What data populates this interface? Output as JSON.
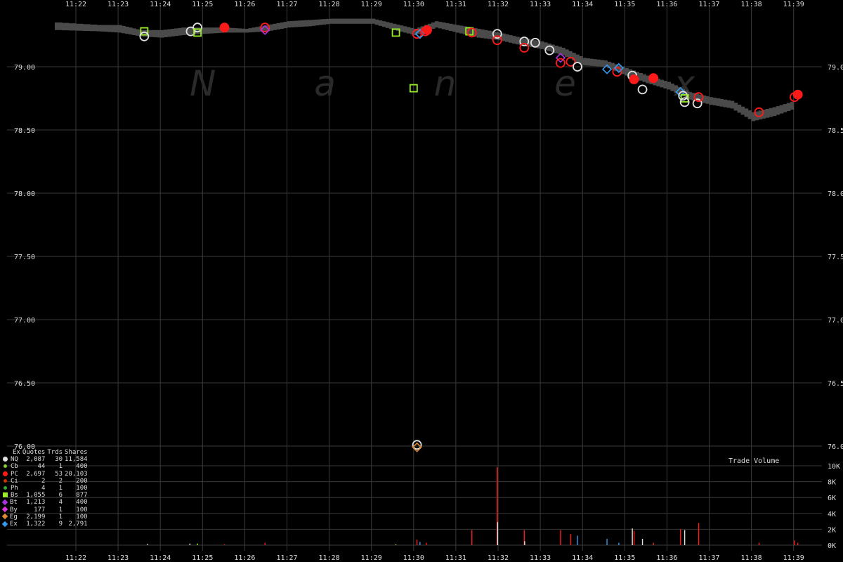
{
  "chart_data": {
    "type": "scatter",
    "watermark": "N  a  n  e  x",
    "x_ticks": [
      "11:22",
      "11:23",
      "11:24",
      "11:25",
      "11:26",
      "11:27",
      "11:28",
      "11:29",
      "11:30",
      "11:31",
      "11:32",
      "11:33",
      "11:34",
      "11:35",
      "11:36",
      "11:37",
      "11:38",
      "11:39"
    ],
    "y_ticks": [
      "79.00",
      "78.50",
      "78.00",
      "77.50",
      "77.00",
      "76.50",
      "76.00"
    ],
    "ylim": [
      75.85,
      79.5
    ],
    "nbbo_band": [
      {
        "t": "11:21.5",
        "lo": 79.29,
        "hi": 79.35
      },
      {
        "t": "11:22.5",
        "lo": 79.28,
        "hi": 79.33
      },
      {
        "t": "11:23.0",
        "lo": 79.27,
        "hi": 79.33
      },
      {
        "t": "11:23.5",
        "lo": 79.24,
        "hi": 79.29
      },
      {
        "t": "11:24.0",
        "lo": 79.23,
        "hi": 79.29
      },
      {
        "t": "11:24.5",
        "lo": 79.25,
        "hi": 79.31
      },
      {
        "t": "11:25.0",
        "lo": 79.26,
        "hi": 79.31
      },
      {
        "t": "11:25.5",
        "lo": 79.27,
        "hi": 79.31
      },
      {
        "t": "11:26.0",
        "lo": 79.27,
        "hi": 79.3
      },
      {
        "t": "11:26.5",
        "lo": 79.28,
        "hi": 79.33
      },
      {
        "t": "11:27.0",
        "lo": 79.31,
        "hi": 79.36
      },
      {
        "t": "11:27.5",
        "lo": 79.32,
        "hi": 79.37
      },
      {
        "t": "11:28.0",
        "lo": 79.34,
        "hi": 79.38
      },
      {
        "t": "11:28.5",
        "lo": 79.34,
        "hi": 79.38
      },
      {
        "t": "11:29.0",
        "lo": 79.34,
        "hi": 79.38
      },
      {
        "t": "11:29.5",
        "lo": 79.29,
        "hi": 79.34
      },
      {
        "t": "11:30.0",
        "lo": 79.25,
        "hi": 79.3
      },
      {
        "t": "11:30.5",
        "lo": 79.31,
        "hi": 79.36
      },
      {
        "t": "11:31.0",
        "lo": 79.27,
        "hi": 79.33
      },
      {
        "t": "11:31.5",
        "lo": 79.23,
        "hi": 79.3
      },
      {
        "t": "11:32.0",
        "lo": 79.21,
        "hi": 79.27
      },
      {
        "t": "11:32.5",
        "lo": 79.17,
        "hi": 79.23
      },
      {
        "t": "11:33.0",
        "lo": 79.14,
        "hi": 79.2
      },
      {
        "t": "11:33.5",
        "lo": 79.09,
        "hi": 79.15
      },
      {
        "t": "11:34.0",
        "lo": 79.01,
        "hi": 79.07
      },
      {
        "t": "11:34.5",
        "lo": 79.0,
        "hi": 79.05
      },
      {
        "t": "11:35.0",
        "lo": 78.93,
        "hi": 78.99
      },
      {
        "t": "11:35.5",
        "lo": 78.87,
        "hi": 78.93
      },
      {
        "t": "11:36.0",
        "lo": 78.82,
        "hi": 78.88
      },
      {
        "t": "11:36.5",
        "lo": 78.74,
        "hi": 78.8
      },
      {
        "t": "11:37.0",
        "lo": 78.7,
        "hi": 78.76
      },
      {
        "t": "11:37.5",
        "lo": 78.67,
        "hi": 78.73
      },
      {
        "t": "11:38.0",
        "lo": 78.57,
        "hi": 78.64
      },
      {
        "t": "11:38.5",
        "lo": 78.61,
        "hi": 78.68
      },
      {
        "t": "11:39.0",
        "lo": 78.67,
        "hi": 78.73
      }
    ],
    "trades": [
      {
        "ex": "Bs",
        "t": "11:23.62",
        "p": 79.28
      },
      {
        "ex": "NQ",
        "t": "11:23.62",
        "p": 79.24
      },
      {
        "ex": "NQ",
        "t": "11:24.72",
        "p": 79.28
      },
      {
        "ex": "NQ",
        "t": "11:24.88",
        "p": 79.31
      },
      {
        "ex": "Bs",
        "t": "11:24.88",
        "p": 79.27
      },
      {
        "ex": "PC",
        "t": "11:25.52",
        "p": 79.31
      },
      {
        "ex": "PC",
        "t": "11:26.48",
        "p": 79.31
      },
      {
        "ex": "Bt",
        "t": "11:26.48",
        "p": 79.29
      },
      {
        "ex": "Bs",
        "t": "11:29.58",
        "p": 79.27
      },
      {
        "ex": "PC",
        "t": "11:30.08",
        "p": 79.26
      },
      {
        "ex": "Ex",
        "t": "11:30.15",
        "p": 79.26
      },
      {
        "ex": "PC",
        "t": "11:30.28",
        "p": 79.28
      },
      {
        "ex": "PC",
        "t": "11:30.32",
        "p": 79.29
      },
      {
        "ex": "Bs",
        "t": "11:30.00",
        "p": 78.83
      },
      {
        "ex": "Bs",
        "t": "11:31.32",
        "p": 79.28
      },
      {
        "ex": "PC",
        "t": "11:31.38",
        "p": 79.27
      },
      {
        "ex": "NQ",
        "t": "11:31.98",
        "p": 79.26
      },
      {
        "ex": "PC",
        "t": "11:31.98",
        "p": 79.21
      },
      {
        "ex": "NQ",
        "t": "11:32.62",
        "p": 79.2
      },
      {
        "ex": "PC",
        "t": "11:32.62",
        "p": 79.15
      },
      {
        "ex": "NQ",
        "t": "11:32.88",
        "p": 79.19
      },
      {
        "ex": "NQ",
        "t": "11:33.22",
        "p": 79.13
      },
      {
        "ex": "Bt",
        "t": "11:33.48",
        "p": 79.07
      },
      {
        "ex": "PC",
        "t": "11:33.48",
        "p": 79.03
      },
      {
        "ex": "PC",
        "t": "11:33.72",
        "p": 79.04
      },
      {
        "ex": "NQ",
        "t": "11:33.88",
        "p": 79.0
      },
      {
        "ex": "Ex",
        "t": "11:34.58",
        "p": 78.98
      },
      {
        "ex": "PC",
        "t": "11:34.82",
        "p": 78.96
      },
      {
        "ex": "Ex",
        "t": "11:34.86",
        "p": 78.99
      },
      {
        "ex": "NQ",
        "t": "11:35.18",
        "p": 78.93
      },
      {
        "ex": "PC",
        "t": "11:35.22",
        "p": 78.9
      },
      {
        "ex": "NQ",
        "t": "11:35.42",
        "p": 78.82
      },
      {
        "ex": "PC",
        "t": "11:35.68",
        "p": 78.91
      },
      {
        "ex": "Ex",
        "t": "11:36.32",
        "p": 78.8
      },
      {
        "ex": "NQ",
        "t": "11:36.38",
        "p": 78.77
      },
      {
        "ex": "Bs",
        "t": "11:36.42",
        "p": 78.75
      },
      {
        "ex": "NQ",
        "t": "11:36.42",
        "p": 78.72
      },
      {
        "ex": "NQ",
        "t": "11:36.72",
        "p": 78.71
      },
      {
        "ex": "PC",
        "t": "11:36.75",
        "p": 78.76
      },
      {
        "ex": "PC",
        "t": "11:38.18",
        "p": 78.64
      },
      {
        "ex": "PC",
        "t": "11:39.02",
        "p": 78.76
      },
      {
        "ex": "PC",
        "t": "11:39.10",
        "p": 78.78
      },
      {
        "ex": "NQ",
        "t": "11:30.08",
        "p": 76.01
      },
      {
        "ex": "Eg",
        "t": "11:30.08",
        "p": 75.99
      }
    ],
    "volume": {
      "title": "Trade Volume",
      "y_ticks": [
        "10K",
        "8K",
        "6K",
        "4K",
        "2K",
        "0K"
      ],
      "ylim": [
        0,
        10000
      ],
      "bars": [
        {
          "t": "11:23.70",
          "v": 150,
          "ex": "NQ"
        },
        {
          "t": "11:24.70",
          "v": 200,
          "ex": "NQ"
        },
        {
          "t": "11:24.88",
          "v": 200,
          "ex": "Bs"
        },
        {
          "t": "11:25.52",
          "v": 100,
          "ex": "PC"
        },
        {
          "t": "11:26.48",
          "v": 300,
          "ex": "PC"
        },
        {
          "t": "11:29.58",
          "v": 100,
          "ex": "Bs"
        },
        {
          "t": "11:30.08",
          "v": 700,
          "ex": "PC"
        },
        {
          "t": "11:30.15",
          "v": 400,
          "ex": "Ex"
        },
        {
          "t": "11:30.30",
          "v": 300,
          "ex": "PC"
        },
        {
          "t": "11:31.38",
          "v": 1900,
          "ex": "PC"
        },
        {
          "t": "11:31.98",
          "v": 9800,
          "ex": "PC"
        },
        {
          "t": "11:31.99",
          "v": 2900,
          "ex": "NQ"
        },
        {
          "t": "11:32.62",
          "v": 1900,
          "ex": "PC"
        },
        {
          "t": "11:32.63",
          "v": 500,
          "ex": "NQ"
        },
        {
          "t": "11:33.48",
          "v": 1900,
          "ex": "PC"
        },
        {
          "t": "11:33.72",
          "v": 1400,
          "ex": "PC"
        },
        {
          "t": "11:33.88",
          "v": 1200,
          "ex": "Ex"
        },
        {
          "t": "11:34.58",
          "v": 800,
          "ex": "Ex"
        },
        {
          "t": "11:34.86",
          "v": 300,
          "ex": "Ex"
        },
        {
          "t": "11:35.18",
          "v": 2100,
          "ex": "NQ"
        },
        {
          "t": "11:35.22",
          "v": 1800,
          "ex": "PC"
        },
        {
          "t": "11:35.42",
          "v": 800,
          "ex": "NQ"
        },
        {
          "t": "11:35.68",
          "v": 300,
          "ex": "PC"
        },
        {
          "t": "11:36.32",
          "v": 2000,
          "ex": "PC"
        },
        {
          "t": "11:36.42",
          "v": 1900,
          "ex": "NQ"
        },
        {
          "t": "11:36.75",
          "v": 2800,
          "ex": "PC"
        },
        {
          "t": "11:38.18",
          "v": 300,
          "ex": "PC"
        },
        {
          "t": "11:39.02",
          "v": 600,
          "ex": "PC"
        },
        {
          "t": "11:39.10",
          "v": 300,
          "ex": "PC"
        }
      ]
    },
    "legend": {
      "headers": [
        "Ex",
        "Quotes",
        "Trds",
        "Shares"
      ],
      "rows": [
        {
          "ex": "NQ",
          "quotes": "2,087",
          "trds": "30",
          "shares": "11,584",
          "color": "#e0e0e0",
          "shape": "circle"
        },
        {
          "ex": "Cb",
          "quotes": "44",
          "trds": "1",
          "shares": "400",
          "color": "#88cc33",
          "shape": "dot"
        },
        {
          "ex": "PC",
          "quotes": "2,697",
          "trds": "53",
          "shares": "20,103",
          "color": "#ff1a1a",
          "shape": "circle-big"
        },
        {
          "ex": "Ci",
          "quotes": "2",
          "trds": "2",
          "shares": "200",
          "color": "#cc3300",
          "shape": "dot"
        },
        {
          "ex": "Ph",
          "quotes": "4",
          "trds": "1",
          "shares": "100",
          "color": "#33aa33",
          "shape": "dot"
        },
        {
          "ex": "Bs",
          "quotes": "1,055",
          "trds": "6",
          "shares": "877",
          "color": "#99ee22",
          "shape": "square"
        },
        {
          "ex": "Bt",
          "quotes": "1,213",
          "trds": "4",
          "shares": "400",
          "color": "#aa33dd",
          "shape": "diamond"
        },
        {
          "ex": "By",
          "quotes": "177",
          "trds": "1",
          "shares": "100",
          "color": "#dd33dd",
          "shape": "diamond"
        },
        {
          "ex": "Eg",
          "quotes": "2,199",
          "trds": "1",
          "shares": "100",
          "color": "#dd8833",
          "shape": "diamond"
        },
        {
          "ex": "Ex",
          "quotes": "1,322",
          "trds": "9",
          "shares": "2,791",
          "color": "#3399ee",
          "shape": "diamond"
        }
      ]
    }
  }
}
